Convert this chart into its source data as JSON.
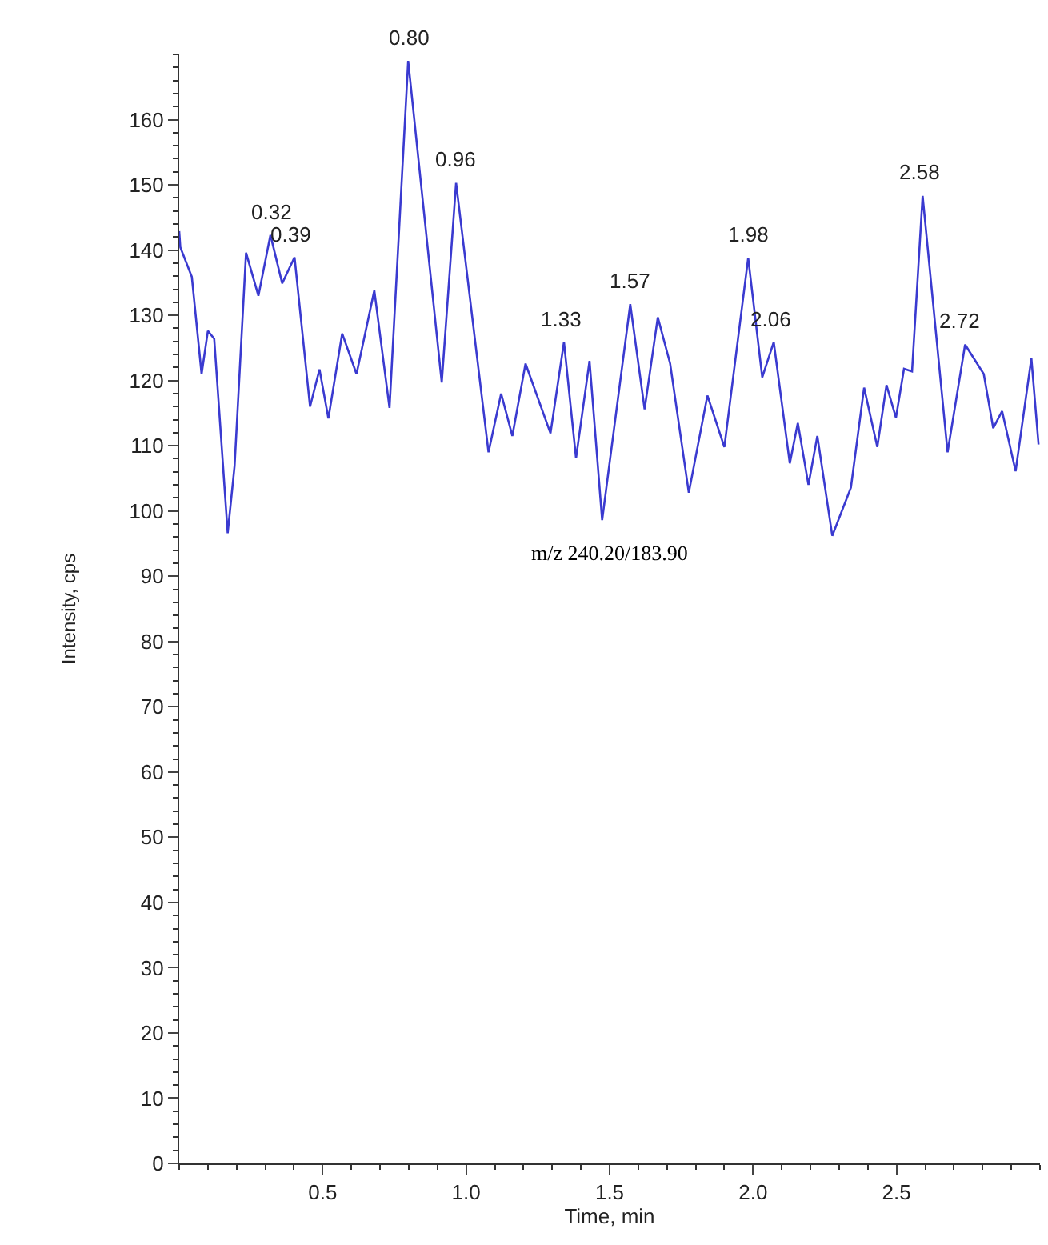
{
  "chart_data": {
    "type": "line",
    "xlabel": "Time, min",
    "ylabel": "Intensity, cps",
    "xlim": [
      0,
      3.0
    ],
    "xticks": [
      0.5,
      {
        "value": 1,
        "label": "1.0"
      },
      1.5,
      {
        "value": 2,
        "label": "2.0"
      },
      2.5
    ],
    "ylim": [
      0,
      170
    ],
    "yticks": [
      0,
      10,
      20,
      30,
      40,
      50,
      60,
      70,
      80,
      90,
      100,
      110,
      120,
      130,
      140,
      150,
      160
    ],
    "grid": false,
    "marker": "none",
    "line_style": "solid",
    "series": [
      {
        "color": "#3a3ad0",
        "x": [
          0,
          0.004,
          0.044,
          0.078,
          0.1,
          0.122,
          0.169,
          0.193,
          0.233,
          0.276,
          0.318,
          0.359,
          0.402,
          0.456,
          0.489,
          0.52,
          0.568,
          0.618,
          0.68,
          0.733,
          0.798,
          0.915,
          0.965,
          1.078,
          1.122,
          1.161,
          1.207,
          1.294,
          1.341,
          1.383,
          1.43,
          1.474,
          1.572,
          1.622,
          1.668,
          1.711,
          1.776,
          1.841,
          1.9,
          1.983,
          2.032,
          2.072,
          2.128,
          2.156,
          2.193,
          2.224,
          2.276,
          2.341,
          2.387,
          2.433,
          2.465,
          2.498,
          2.526,
          2.554,
          2.591,
          2.678,
          2.739,
          2.804,
          2.837,
          2.868,
          2.915,
          2.97,
          2.995
        ],
        "values": [
          142.9,
          140.4,
          135.9,
          121,
          127.6,
          126.4,
          96.6,
          106.9,
          139.6,
          133,
          142.3,
          134.9,
          138.9,
          116,
          121.7,
          114.2,
          127.2,
          121,
          133.8,
          115.8,
          169,
          119.7,
          150.3,
          109,
          118,
          111.5,
          122.6,
          111.9,
          125.9,
          108.1,
          123,
          98.6,
          131.7,
          115.6,
          129.7,
          122.6,
          102.8,
          117.7,
          109.8,
          138.8,
          120.5,
          125.9,
          107.3,
          113.5,
          104,
          111.5,
          96.2,
          103.6,
          118.9,
          109.8,
          119.3,
          114.3,
          121.8,
          121.4,
          148.3,
          109,
          125.5,
          121,
          112.7,
          115.3,
          106.1,
          123.4,
          110.2
        ]
      }
    ],
    "annotations": [
      {
        "text": "0.80",
        "x": 0.8,
        "y": 169
      },
      {
        "text": "0.96",
        "x": 0.96,
        "y": 150.3
      },
      {
        "text": "0.32",
        "x": 0.32,
        "y": 142.3
      },
      {
        "text": "0.39",
        "x": 0.39,
        "y": 138.9
      },
      {
        "text": "1.33",
        "x": 1.33,
        "y": 125.9
      },
      {
        "text": "1.57",
        "x": 1.57,
        "y": 131.7
      },
      {
        "text": "1.98",
        "x": 1.98,
        "y": 138.8
      },
      {
        "text": "2.06",
        "x": 2.06,
        "y": 125.9
      },
      {
        "text": "2.58",
        "x": 2.58,
        "y": 148.3
      },
      {
        "text": "2.72",
        "x": 2.72,
        "y": 125.5
      },
      "m/z 240.20/183.90"
    ]
  }
}
